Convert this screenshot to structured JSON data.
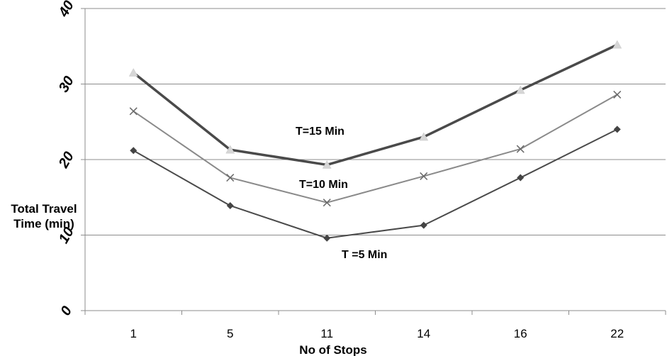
{
  "chart_data": {
    "type": "line",
    "title": "",
    "xlabel": "No of  Stops",
    "ylabel_lines": [
      "Total Travel",
      "Time (min)"
    ],
    "categories": [
      "1",
      "5",
      "11",
      "14",
      "16",
      "22"
    ],
    "ylim": [
      0,
      40
    ],
    "yticks": [
      "0",
      "10",
      "20",
      "30",
      "40"
    ],
    "grid": true,
    "legend": "none",
    "series": [
      {
        "name": "T=15 Min",
        "values": [
          31.5,
          21.3,
          19.3,
          23.0,
          29.2,
          35.2
        ],
        "color": "#4a4a4a",
        "marker": "triangle",
        "marker_color": "#d6d6d6"
      },
      {
        "name": "T=10 Min",
        "values": [
          26.4,
          17.6,
          14.3,
          17.8,
          21.4,
          28.6
        ],
        "color": "#8a8a8a",
        "marker": "x",
        "marker_color": "#6a6a6a"
      },
      {
        "name": "T =5 Min",
        "values": [
          21.2,
          13.9,
          9.6,
          11.3,
          17.6,
          24.0
        ],
        "color": "#4a4a4a",
        "marker": "diamond",
        "marker_color": "#444444"
      }
    ]
  }
}
